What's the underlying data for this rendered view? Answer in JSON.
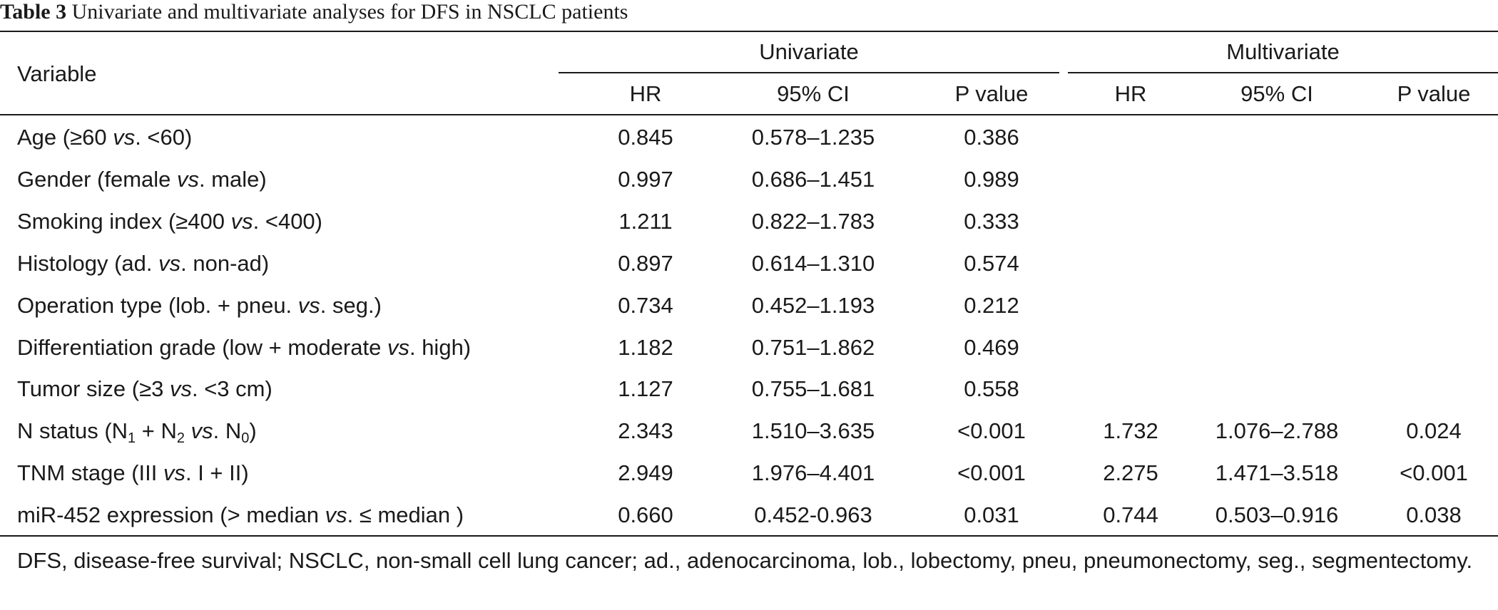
{
  "caption": {
    "label": "Table 3",
    "title": "Univariate and multivariate analyses for DFS in NSCLC patients"
  },
  "header": {
    "variable": "Variable",
    "group_univariate": "Univariate",
    "group_multivariate": "Multivariate",
    "hr": "HR",
    "ci": "95% CI",
    "p": "P value"
  },
  "rows": [
    {
      "label": [
        {
          "t": "Age (≥60 "
        },
        {
          "t": "vs",
          "i": true
        },
        {
          "t": ". <60)"
        }
      ],
      "uni": {
        "hr": "0.845",
        "ci": "0.578–1.235",
        "p": "0.386"
      },
      "multi": {
        "hr": "",
        "ci": "",
        "p": ""
      }
    },
    {
      "label": [
        {
          "t": "Gender (female "
        },
        {
          "t": "vs",
          "i": true
        },
        {
          "t": ". male)"
        }
      ],
      "uni": {
        "hr": "0.997",
        "ci": "0.686–1.451",
        "p": "0.989"
      },
      "multi": {
        "hr": "",
        "ci": "",
        "p": ""
      }
    },
    {
      "label": [
        {
          "t": "Smoking index (≥400 "
        },
        {
          "t": "vs",
          "i": true
        },
        {
          "t": ". <400)"
        }
      ],
      "uni": {
        "hr": "1.211",
        "ci": "0.822–1.783",
        "p": "0.333"
      },
      "multi": {
        "hr": "",
        "ci": "",
        "p": ""
      }
    },
    {
      "label": [
        {
          "t": "Histology (ad. "
        },
        {
          "t": "vs",
          "i": true
        },
        {
          "t": ". non-ad)"
        }
      ],
      "uni": {
        "hr": "0.897",
        "ci": "0.614–1.310",
        "p": "0.574"
      },
      "multi": {
        "hr": "",
        "ci": "",
        "p": ""
      }
    },
    {
      "label": [
        {
          "t": "Operation type (lob. + pneu. "
        },
        {
          "t": "vs",
          "i": true
        },
        {
          "t": ". seg.)"
        }
      ],
      "uni": {
        "hr": "0.734",
        "ci": "0.452–1.193",
        "p": "0.212"
      },
      "multi": {
        "hr": "",
        "ci": "",
        "p": ""
      }
    },
    {
      "label": [
        {
          "t": "Differentiation grade (low + moderate "
        },
        {
          "t": "vs",
          "i": true
        },
        {
          "t": ". high)"
        }
      ],
      "uni": {
        "hr": "1.182",
        "ci": "0.751–1.862",
        "p": "0.469"
      },
      "multi": {
        "hr": "",
        "ci": "",
        "p": ""
      }
    },
    {
      "label": [
        {
          "t": "Tumor size (≥3 "
        },
        {
          "t": "vs",
          "i": true
        },
        {
          "t": ". <3 cm)"
        }
      ],
      "uni": {
        "hr": "1.127",
        "ci": "0.755–1.681",
        "p": "0.558"
      },
      "multi": {
        "hr": "",
        "ci": "",
        "p": ""
      }
    },
    {
      "label": [
        {
          "t": "N status (N"
        },
        {
          "t": "1",
          "sub": true
        },
        {
          "t": " + N"
        },
        {
          "t": "2",
          "sub": true
        },
        {
          "t": " "
        },
        {
          "t": "vs",
          "i": true
        },
        {
          "t": ". N"
        },
        {
          "t": "0",
          "sub": true
        },
        {
          "t": ")"
        }
      ],
      "uni": {
        "hr": "2.343",
        "ci": "1.510–3.635",
        "p": "<0.001"
      },
      "multi": {
        "hr": "1.732",
        "ci": "1.076–2.788",
        "p": "0.024"
      }
    },
    {
      "label": [
        {
          "t": "TNM stage (III "
        },
        {
          "t": "vs",
          "i": true
        },
        {
          "t": ". I + II)"
        }
      ],
      "uni": {
        "hr": "2.949",
        "ci": "1.976–4.401",
        "p": "<0.001"
      },
      "multi": {
        "hr": "2.275",
        "ci": "1.471–3.518",
        "p": "<0.001"
      }
    },
    {
      "label": [
        {
          "t": "miR-452 expression (> median "
        },
        {
          "t": "vs",
          "i": true
        },
        {
          "t": ". ≤ median )"
        }
      ],
      "uni": {
        "hr": "0.660",
        "ci": "0.452-0.963",
        "p": "0.031"
      },
      "multi": {
        "hr": "0.744",
        "ci": "0.503–0.916",
        "p": "0.038"
      }
    }
  ],
  "footnote": "DFS, disease-free survival; NSCLC, non-small cell lung cancer; ad., adenocarcinoma, lob., lobectomy, pneu, pneumonectomy, seg., segmentectomy."
}
